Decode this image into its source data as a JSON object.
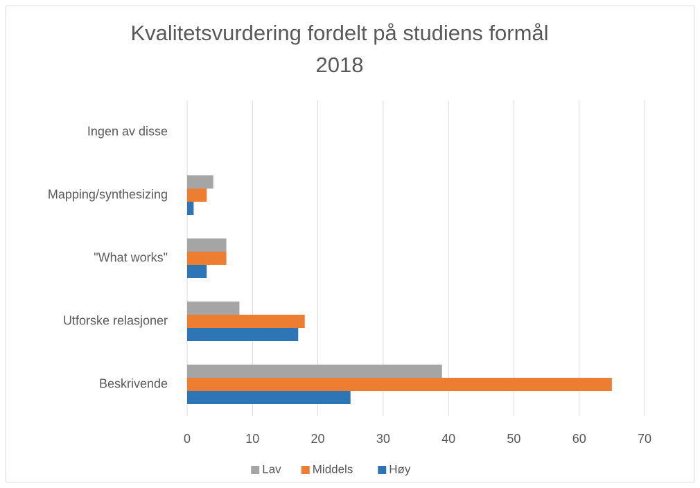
{
  "chart_data": {
    "type": "bar",
    "orientation": "horizontal",
    "title": [
      "Kvalitetsvurdering fordelt på studiens formål",
      "2018"
    ],
    "categories": [
      "Beskrivende",
      "Utforske relasjoner",
      "\"What works\"",
      "Mapping/synthesizing",
      "Ingen av disse"
    ],
    "series": [
      {
        "name": "Lav",
        "color": "#a5a5a5",
        "values": [
          39,
          8,
          6,
          4,
          0
        ]
      },
      {
        "name": "Middels",
        "color": "#ed7d31",
        "values": [
          65,
          18,
          6,
          3,
          0
        ]
      },
      {
        "name": "Høy",
        "color": "#2e75b6",
        "values": [
          25,
          17,
          3,
          1,
          0
        ]
      }
    ],
    "xlim": [
      0,
      70
    ],
    "xticks": [
      0,
      10,
      20,
      30,
      40,
      50,
      60,
      70
    ],
    "grid": true,
    "legend": "bottom"
  }
}
